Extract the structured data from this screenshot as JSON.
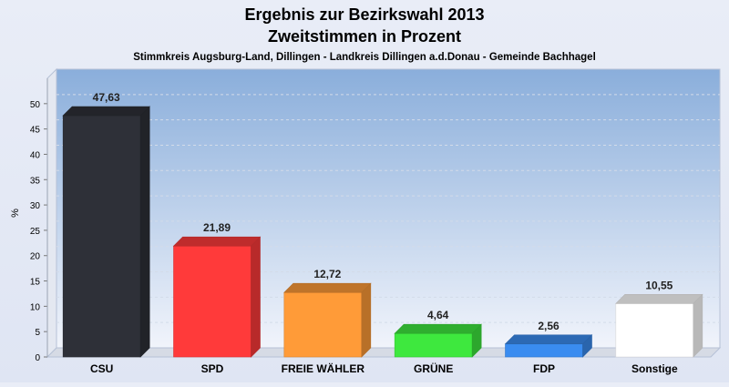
{
  "chart_data": {
    "type": "bar",
    "title": "Ergebnis zur Bezirkswahl 2013",
    "subtitle": "Zweitstimmen in Prozent",
    "caption": "Stimmkreis Augsburg-Land, Dillingen - Landkreis Dillingen a.d.Donau - Gemeinde Bachhagel",
    "xlabel": "",
    "ylabel": "%",
    "ylim": [
      0,
      55
    ],
    "yticks": [
      0,
      5,
      10,
      15,
      20,
      25,
      30,
      35,
      40,
      45,
      50
    ],
    "grid": true,
    "categories": [
      "CSU",
      "SPD",
      "FREIE WÄHLER",
      "GRÜNE",
      "FDP",
      "Sonstige"
    ],
    "values": [
      47.63,
      21.89,
      12.72,
      4.64,
      2.56,
      10.55
    ],
    "value_labels": [
      "47,63",
      "21,89",
      "12,72",
      "4,64",
      "2,56",
      "10,55"
    ],
    "colors": [
      "#2e3038",
      "#ff3a3a",
      "#ff9b38",
      "#3ee83e",
      "#3a8cf0",
      "#ffffff"
    ]
  }
}
